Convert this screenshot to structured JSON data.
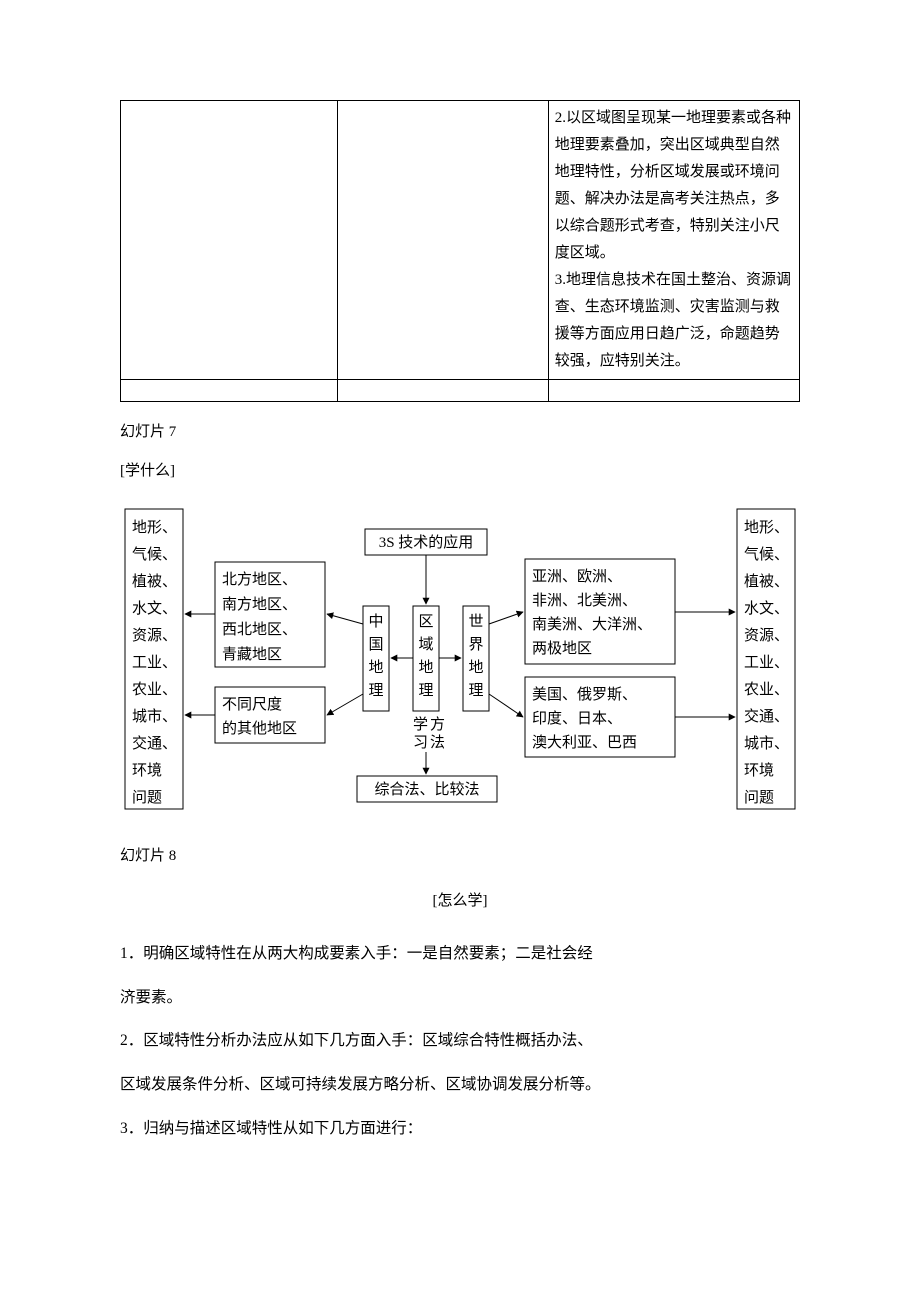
{
  "topTable": {
    "cellC1": "2.以区域图呈现某一地理要素或各种地理要素叠加，突出区域典型自然地理特性，分析区域发展或环境问题、解决办法是高考关注热点，多以综合题形式考查，特别关注小尺度区域。\n3.地理信息技术在国土整治、资源调查、生态环境监测、灾害监测与救援等方面应用日趋广泛，命题趋势较强，应特别关注。",
    "border_color": "#000000"
  },
  "slide7": {
    "caption": "幻灯片 7",
    "label": "[学什么]"
  },
  "slide8": {
    "caption": "幻灯片 8",
    "label": "[怎么学]"
  },
  "diagram": {
    "box_stroke": "#000000",
    "box_fill": "#ffffff",
    "text_color": "#000000",
    "arrow_color": "#000000",
    "font_size": 15,
    "top_box": "3S 技术的应用",
    "bottom_label_a": "学",
    "bottom_label_b": "方",
    "bottom_label_c": "习",
    "bottom_label_d": "法",
    "bottom_box": "综合法、比较法",
    "center_left_v": "中国地理",
    "center_mid_v": "区域地理",
    "center_right_v": "世界地理",
    "left_small_top_l1": "北方地区、",
    "left_small_top_l2": "南方地区、",
    "left_small_top_l3": "西北地区、",
    "left_small_top_l4": "青藏地区",
    "left_small_bot_l1": "不同尺度",
    "left_small_bot_l2": "的其他地区",
    "right_small_top_l1": "亚洲、欧洲、",
    "right_small_top_l2": "非洲、北美洲、",
    "right_small_top_l3": "南美洲、大洋洲、",
    "right_small_top_l4": "两极地区",
    "right_small_bot_l1": "美国、俄罗斯、",
    "right_small_bot_l2": "印度、日本、",
    "right_small_bot_l3": "澳大利亚、巴西",
    "far_left_items": [
      "地形、",
      "气候、",
      "植被、",
      "水文、",
      "资源、",
      "工业、",
      "农业、",
      "城市、",
      "交通、",
      "环境",
      "问题"
    ],
    "far_right_items": [
      "地形、",
      "气候、",
      "植被、",
      "水文、",
      "资源、",
      "工业、",
      "农业、",
      "交通、",
      "城市、",
      "环境",
      "问题"
    ]
  },
  "body": {
    "p1": "1．明确区域特性在从两大构成要素入手：一是自然要素；二是社会经",
    "p2": "济要素。",
    "p3": "2．区域特性分析办法应从如下几方面入手：区域综合特性概括办法、",
    "p4": "区域发展条件分析、区域可持续发展方略分析、区域协调发展分析等。",
    "p5": "3．归纳与描述区域特性从如下几方面进行："
  }
}
